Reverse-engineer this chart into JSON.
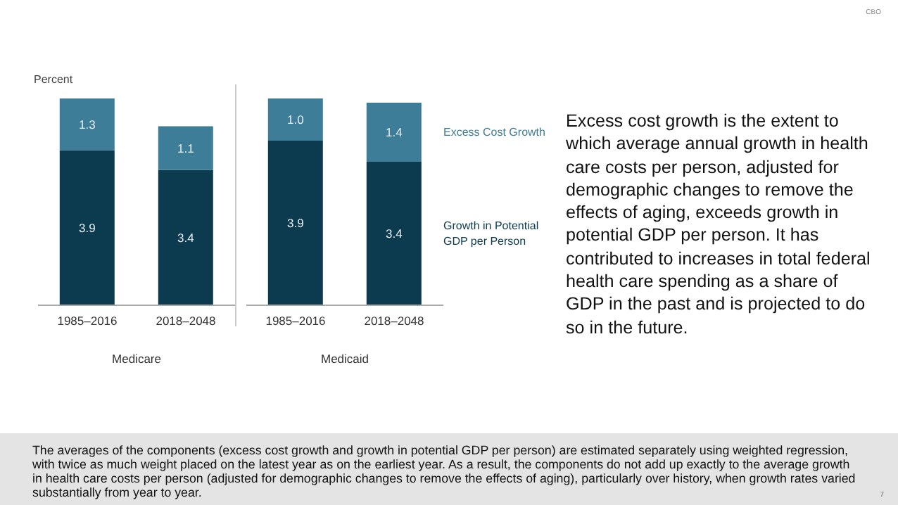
{
  "chart_data": [
    {
      "type": "bar",
      "stacked": true,
      "ylabel": "Percent",
      "xlabel": "Medicare",
      "categories": [
        "1985–2016",
        "2018–2048"
      ],
      "tick_labels": "x",
      "series": [
        {
          "color": "#0c3b50",
          "values": [
            3.9,
            3.4
          ],
          "value_labels": [
            "3.9",
            "3.4"
          ]
        },
        {
          "color": "#3e7d97",
          "values": [
            1.3,
            1.1
          ],
          "value_labels": [
            "1.3",
            "1.1"
          ]
        }
      ]
    },
    {
      "type": "bar",
      "stacked": true,
      "xlabel": "Medicaid",
      "categories": [
        "1985–2016",
        "2018–2048"
      ],
      "tick_labels": "x",
      "series": [
        {
          "name": "Growth in Potential GDP per Person",
          "color": "#0c3b50",
          "values": [
            3.9,
            3.4
          ],
          "value_labels": [
            "3.9",
            "3.4"
          ]
        },
        {
          "name": "Excess Cost Growth",
          "color": "#3e7d97",
          "values": [
            1.0,
            1.4
          ],
          "value_labels": [
            "1.0",
            "1.4"
          ]
        }
      ]
    },
    {
      "type": "other",
      "annotations": [
        "Excess cost growth is the extent to which average annual growth in health care costs per person, adjusted for demographic changes to remove the effects of aging, exceeds growth in potential GDP per person. It has contributed to increases in total federal health care spending as a share of GDP in the past and is projected to do so in the future.",
        "The averages of the components (excess cost growth and growth in potential GDP per person) are estimated separately using weighted regression, with twice as much weight placed on the latest year as on the earliest year. As a result, the components do not add up exactly to the average growth in health care costs per person (adjusted for demographic changes to remove the effects of aging), particularly over history, when growth rates varied substantially from year to year.",
        "CBO",
        "7"
      ]
    }
  ]
}
